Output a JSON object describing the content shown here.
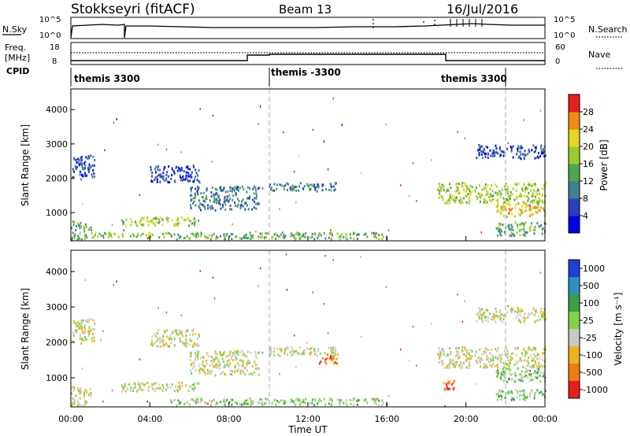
{
  "header": {
    "station": "Stokkseyri (fitACF)",
    "beam": "Beam 13",
    "date": "16/Jul/2016"
  },
  "top_panels": {
    "nsky_label": "N.Sky",
    "nsky_ticks": [
      "10^5",
      "10^0"
    ],
    "nsearch_label": "N.Search",
    "nsearch_ticks": [
      "10^5",
      "10^0"
    ],
    "freq_label_line1": "Freq.",
    "freq_label_line2": "[MHz]",
    "freq_ticks": [
      "18",
      "8"
    ],
    "nave_label": "Nave",
    "nave_ticks": [
      "60",
      "0"
    ],
    "cpid_label": "CPID",
    "cpid_segments": [
      "themis 3300",
      "themis -3300",
      "themis 3300"
    ]
  },
  "chart_data": [
    {
      "type": "heatmap",
      "title": "",
      "ylabel": "Slant Range [km]",
      "xlabel": "",
      "x_range_hours": [
        0,
        24
      ],
      "y_range_km": [
        180,
        4600
      ],
      "y_ticks": [
        "1000",
        "2000",
        "3000",
        "4000"
      ],
      "colorbar_label": "Power [dB]",
      "colorbar_ticks": [
        "4",
        "8",
        "12",
        "16",
        "20",
        "24",
        "28"
      ],
      "colors": [
        "#0000e6",
        "#2a3fbf",
        "#3f7f8f",
        "#4ea64e",
        "#9ccc2c",
        "#e6d61e",
        "#f08a14",
        "#e61e1e"
      ],
      "regions": [
        {
          "x": [
            0.0,
            1.2
          ],
          "y": [
            2000,
            2700
          ],
          "level": 1
        },
        {
          "x": [
            0.0,
            1.0
          ],
          "y": [
            250,
            800
          ],
          "level": 3
        },
        {
          "x": [
            1.0,
            5.0
          ],
          "y": [
            300,
            450
          ],
          "level": 4
        },
        {
          "x": [
            2.5,
            6.5
          ],
          "y": [
            650,
            900
          ],
          "level": 4
        },
        {
          "x": [
            4.0,
            6.5
          ],
          "y": [
            1900,
            2400
          ],
          "level": 1
        },
        {
          "x": [
            6.0,
            9.5
          ],
          "y": [
            1100,
            1800
          ],
          "level": 2
        },
        {
          "x": [
            10.0,
            13.5
          ],
          "y": [
            1650,
            1900
          ],
          "level": 2
        },
        {
          "x": [
            5.0,
            16.0
          ],
          "y": [
            250,
            450
          ],
          "level": 3
        },
        {
          "x": [
            18.5,
            24.0
          ],
          "y": [
            1300,
            1900
          ],
          "level": 4
        },
        {
          "x": [
            21.5,
            24.0
          ],
          "y": [
            900,
            1300
          ],
          "level": 5
        },
        {
          "x": [
            20.5,
            24.0
          ],
          "y": [
            2600,
            3000
          ],
          "level": 1
        },
        {
          "x": [
            21.5,
            24.0
          ],
          "y": [
            350,
            750
          ],
          "level": 3
        }
      ]
    },
    {
      "type": "heatmap",
      "title": "",
      "ylabel": "Slant Range [km]",
      "xlabel": "Time UT",
      "x_range_hours": [
        0,
        24
      ],
      "y_range_km": [
        180,
        4600
      ],
      "y_ticks": [
        "1000",
        "2000",
        "3000",
        "4000"
      ],
      "x_ticks": [
        "00:00",
        "04:00",
        "08:00",
        "12:00",
        "16:00",
        "20:00",
        "00:00"
      ],
      "colorbar_label": "Velocity [m s⁻¹]",
      "colorbar_ticks": [
        "1000",
        "500",
        "100",
        "25",
        "-25",
        "-100",
        "-500",
        "-1000"
      ],
      "colors": [
        "#1f3fd6",
        "#2f8fc0",
        "#3aa04a",
        "#7fd44a",
        "#c8c8c4",
        "#f0b21e",
        "#f07a14",
        "#e61e1e"
      ],
      "regions": [
        {
          "x": [
            0.0,
            1.2
          ],
          "y": [
            2000,
            2700
          ],
          "level": 4
        },
        {
          "x": [
            0.0,
            1.0
          ],
          "y": [
            250,
            800
          ],
          "level": 4
        },
        {
          "x": [
            2.5,
            6.5
          ],
          "y": [
            650,
            900
          ],
          "level": 4
        },
        {
          "x": [
            4.0,
            6.5
          ],
          "y": [
            1900,
            2400
          ],
          "level": 4
        },
        {
          "x": [
            6.0,
            9.5
          ],
          "y": [
            1100,
            1800
          ],
          "level": 4
        },
        {
          "x": [
            10.0,
            13.5
          ],
          "y": [
            1650,
            1900
          ],
          "level": 4
        },
        {
          "x": [
            12.5,
            13.5
          ],
          "y": [
            1400,
            1700
          ],
          "level": 6
        },
        {
          "x": [
            5.0,
            16.0
          ],
          "y": [
            250,
            450
          ],
          "level": 3
        },
        {
          "x": [
            18.5,
            24.0
          ],
          "y": [
            1300,
            1900
          ],
          "level": 4
        },
        {
          "x": [
            21.5,
            24.0
          ],
          "y": [
            900,
            1300
          ],
          "level": 3
        },
        {
          "x": [
            20.5,
            24.0
          ],
          "y": [
            2600,
            3000
          ],
          "level": 4
        },
        {
          "x": [
            21.5,
            24.0
          ],
          "y": [
            400,
            700
          ],
          "level": 3
        },
        {
          "x": [
            18.8,
            19.4
          ],
          "y": [
            700,
            1000
          ],
          "level": 6
        }
      ]
    }
  ]
}
